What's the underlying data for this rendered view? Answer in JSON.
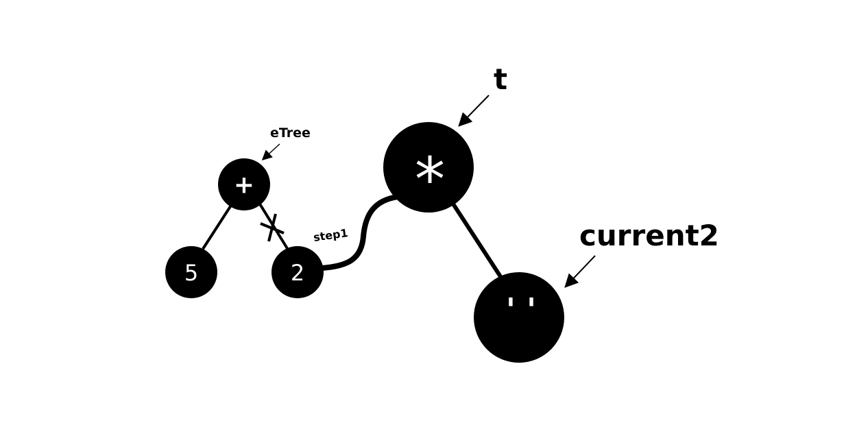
{
  "colors": {
    "ink": "#000000",
    "node_text": "#ffffff",
    "background": "#ffffff"
  },
  "nodes": {
    "plus": "+",
    "five": "5",
    "two": "2",
    "star": "*",
    "space": "' '"
  },
  "labels": {
    "etree": "eTree",
    "step1": "step1",
    "t": "t",
    "current2": "current2"
  }
}
